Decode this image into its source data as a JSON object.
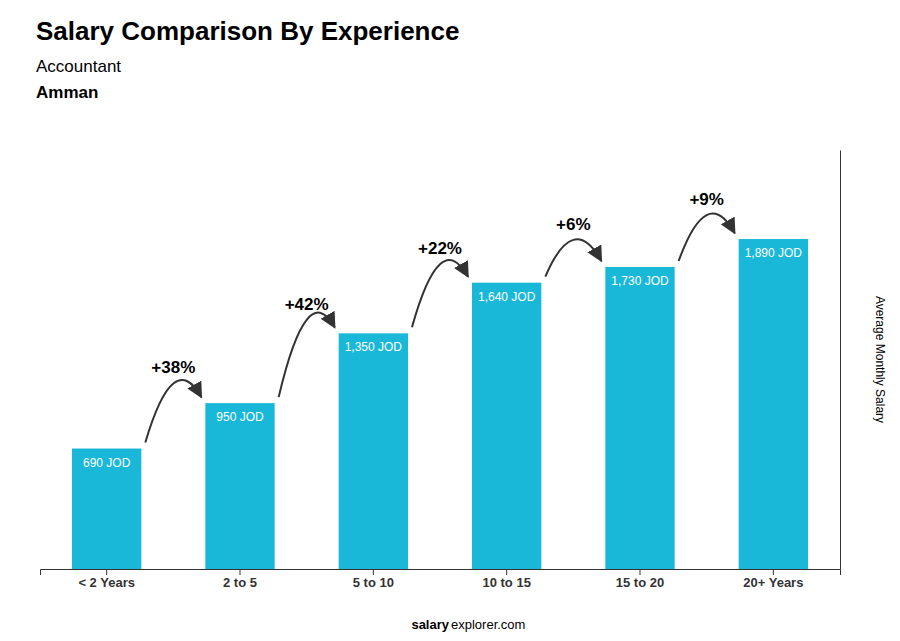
{
  "chart_data": {
    "type": "bar",
    "title": "Salary Comparison By Experience",
    "subtitle": [
      "Accountant",
      "Amman"
    ],
    "ylabel": "Average Monthly Salary",
    "categories": [
      "< 2 Years",
      "2 to 5",
      "5 to 10",
      "10 to 15",
      "15 to 20",
      "20+ Years"
    ],
    "values": [
      690,
      950,
      1350,
      1640,
      1730,
      1890
    ],
    "value_labels": [
      "690 JOD",
      "950 JOD",
      "1,350 JOD",
      "1,640 JOD",
      "1,730 JOD",
      "1,890 JOD"
    ],
    "data_labels": true,
    "color": "#1ab8d8",
    "ylim": [
      0,
      2400
    ],
    "tick_labels": "x",
    "annotations": [
      "+38%",
      "+42%",
      "+22%",
      "+6%",
      "+9%"
    ],
    "source": [
      "salary",
      "explorer.com"
    ]
  }
}
